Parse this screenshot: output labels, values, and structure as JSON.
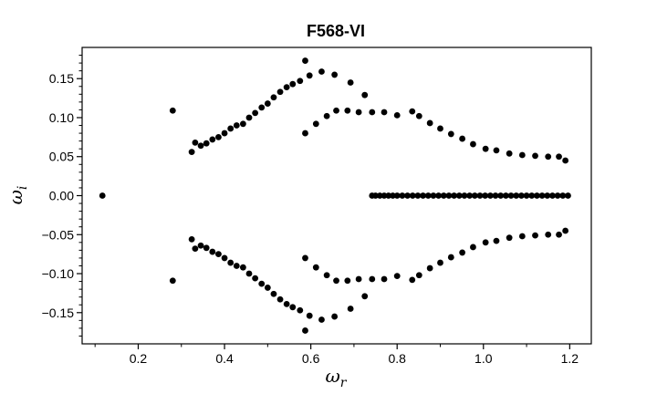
{
  "chart_data": {
    "type": "scatter",
    "title": "F568-VI",
    "xlabel": "ω",
    "xlabel_sub": "r",
    "ylabel": "ω",
    "ylabel_sub": "i",
    "xlim": [
      0.07,
      1.25
    ],
    "ylim": [
      -0.19,
      0.19
    ],
    "x_ticks": [
      0.2,
      0.4,
      0.6,
      0.8,
      1.0,
      1.2
    ],
    "x_tick_labels": [
      "0.2",
      "0.4",
      "0.6",
      "0.8",
      "1.0",
      "1.2"
    ],
    "y_ticks": [
      -0.15,
      -0.1,
      -0.05,
      0.0,
      0.05,
      0.1,
      0.15
    ],
    "y_tick_labels": [
      "−0.15",
      "−0.10",
      "−0.05",
      "0.00",
      "0.05",
      "0.10",
      "0.15"
    ],
    "grid": false,
    "marker_color": "#000000",
    "points": [
      [
        0.117,
        0.0
      ],
      [
        0.28,
        0.109
      ],
      [
        0.28,
        -0.109
      ],
      [
        0.324,
        0.056
      ],
      [
        0.332,
        0.068
      ],
      [
        0.345,
        0.064
      ],
      [
        0.358,
        0.067
      ],
      [
        0.372,
        0.072
      ],
      [
        0.386,
        0.075
      ],
      [
        0.4,
        0.08
      ],
      [
        0.414,
        0.086
      ],
      [
        0.428,
        0.09
      ],
      [
        0.443,
        0.092
      ],
      [
        0.457,
        0.1
      ],
      [
        0.471,
        0.106
      ],
      [
        0.486,
        0.113
      ],
      [
        0.5,
        0.118
      ],
      [
        0.514,
        0.126
      ],
      [
        0.529,
        0.133
      ],
      [
        0.544,
        0.139
      ],
      [
        0.558,
        0.143
      ],
      [
        0.575,
        0.147
      ],
      [
        0.597,
        0.154
      ],
      [
        0.625,
        0.159
      ],
      [
        0.655,
        0.155
      ],
      [
        0.692,
        0.145
      ],
      [
        0.725,
        0.129
      ],
      [
        0.587,
        0.173
      ],
      [
        0.587,
        0.08
      ],
      [
        0.612,
        0.092
      ],
      [
        0.637,
        0.102
      ],
      [
        0.659,
        0.109
      ],
      [
        0.685,
        0.109
      ],
      [
        0.711,
        0.107
      ],
      [
        0.742,
        0.107
      ],
      [
        0.77,
        0.107
      ],
      [
        0.8,
        0.103
      ],
      [
        0.835,
        0.108
      ],
      [
        0.851,
        0.102
      ],
      [
        0.876,
        0.093
      ],
      [
        0.9,
        0.086
      ],
      [
        0.925,
        0.079
      ],
      [
        0.951,
        0.073
      ],
      [
        0.976,
        0.066
      ],
      [
        1.005,
        0.06
      ],
      [
        1.03,
        0.058
      ],
      [
        1.06,
        0.054
      ],
      [
        1.09,
        0.052
      ],
      [
        1.12,
        0.051
      ],
      [
        1.15,
        0.05
      ],
      [
        1.175,
        0.05
      ],
      [
        1.19,
        0.045
      ],
      [
        0.324,
        -0.056
      ],
      [
        0.332,
        -0.068
      ],
      [
        0.345,
        -0.064
      ],
      [
        0.358,
        -0.067
      ],
      [
        0.372,
        -0.072
      ],
      [
        0.386,
        -0.075
      ],
      [
        0.4,
        -0.08
      ],
      [
        0.414,
        -0.086
      ],
      [
        0.428,
        -0.09
      ],
      [
        0.443,
        -0.092
      ],
      [
        0.457,
        -0.1
      ],
      [
        0.471,
        -0.106
      ],
      [
        0.486,
        -0.113
      ],
      [
        0.5,
        -0.118
      ],
      [
        0.514,
        -0.126
      ],
      [
        0.529,
        -0.133
      ],
      [
        0.544,
        -0.139
      ],
      [
        0.558,
        -0.143
      ],
      [
        0.575,
        -0.147
      ],
      [
        0.597,
        -0.154
      ],
      [
        0.625,
        -0.159
      ],
      [
        0.655,
        -0.155
      ],
      [
        0.692,
        -0.145
      ],
      [
        0.725,
        -0.129
      ],
      [
        0.587,
        -0.173
      ],
      [
        0.587,
        -0.08
      ],
      [
        0.612,
        -0.092
      ],
      [
        0.637,
        -0.102
      ],
      [
        0.659,
        -0.109
      ],
      [
        0.685,
        -0.109
      ],
      [
        0.711,
        -0.107
      ],
      [
        0.742,
        -0.107
      ],
      [
        0.77,
        -0.107
      ],
      [
        0.8,
        -0.103
      ],
      [
        0.835,
        -0.108
      ],
      [
        0.851,
        -0.102
      ],
      [
        0.876,
        -0.093
      ],
      [
        0.9,
        -0.086
      ],
      [
        0.925,
        -0.079
      ],
      [
        0.951,
        -0.073
      ],
      [
        0.976,
        -0.066
      ],
      [
        1.005,
        -0.06
      ],
      [
        1.03,
        -0.058
      ],
      [
        1.06,
        -0.054
      ],
      [
        1.09,
        -0.052
      ],
      [
        1.12,
        -0.051
      ],
      [
        1.15,
        -0.05
      ],
      [
        1.175,
        -0.05
      ],
      [
        1.19,
        -0.045
      ],
      [
        0.742,
        0.0
      ],
      [
        0.75,
        0.0
      ],
      [
        0.76,
        0.0
      ],
      [
        0.77,
        0.0
      ],
      [
        0.78,
        0.0
      ],
      [
        0.79,
        0.0
      ],
      [
        0.8,
        0.0
      ],
      [
        0.812,
        0.0
      ],
      [
        0.824,
        0.0
      ],
      [
        0.836,
        0.0
      ],
      [
        0.848,
        0.0
      ],
      [
        0.86,
        0.0
      ],
      [
        0.872,
        0.0
      ],
      [
        0.884,
        0.0
      ],
      [
        0.896,
        0.0
      ],
      [
        0.908,
        0.0
      ],
      [
        0.92,
        0.0
      ],
      [
        0.932,
        0.0
      ],
      [
        0.944,
        0.0
      ],
      [
        0.956,
        0.0
      ],
      [
        0.968,
        0.0
      ],
      [
        0.98,
        0.0
      ],
      [
        0.992,
        0.0
      ],
      [
        1.004,
        0.0
      ],
      [
        1.016,
        0.0
      ],
      [
        1.028,
        0.0
      ],
      [
        1.04,
        0.0
      ],
      [
        1.052,
        0.0
      ],
      [
        1.064,
        0.0
      ],
      [
        1.076,
        0.0
      ],
      [
        1.088,
        0.0
      ],
      [
        1.1,
        0.0
      ],
      [
        1.112,
        0.0
      ],
      [
        1.124,
        0.0
      ],
      [
        1.136,
        0.0
      ],
      [
        1.148,
        0.0
      ],
      [
        1.16,
        0.0
      ],
      [
        1.172,
        0.0
      ],
      [
        1.184,
        0.0
      ],
      [
        1.196,
        0.0
      ]
    ]
  }
}
